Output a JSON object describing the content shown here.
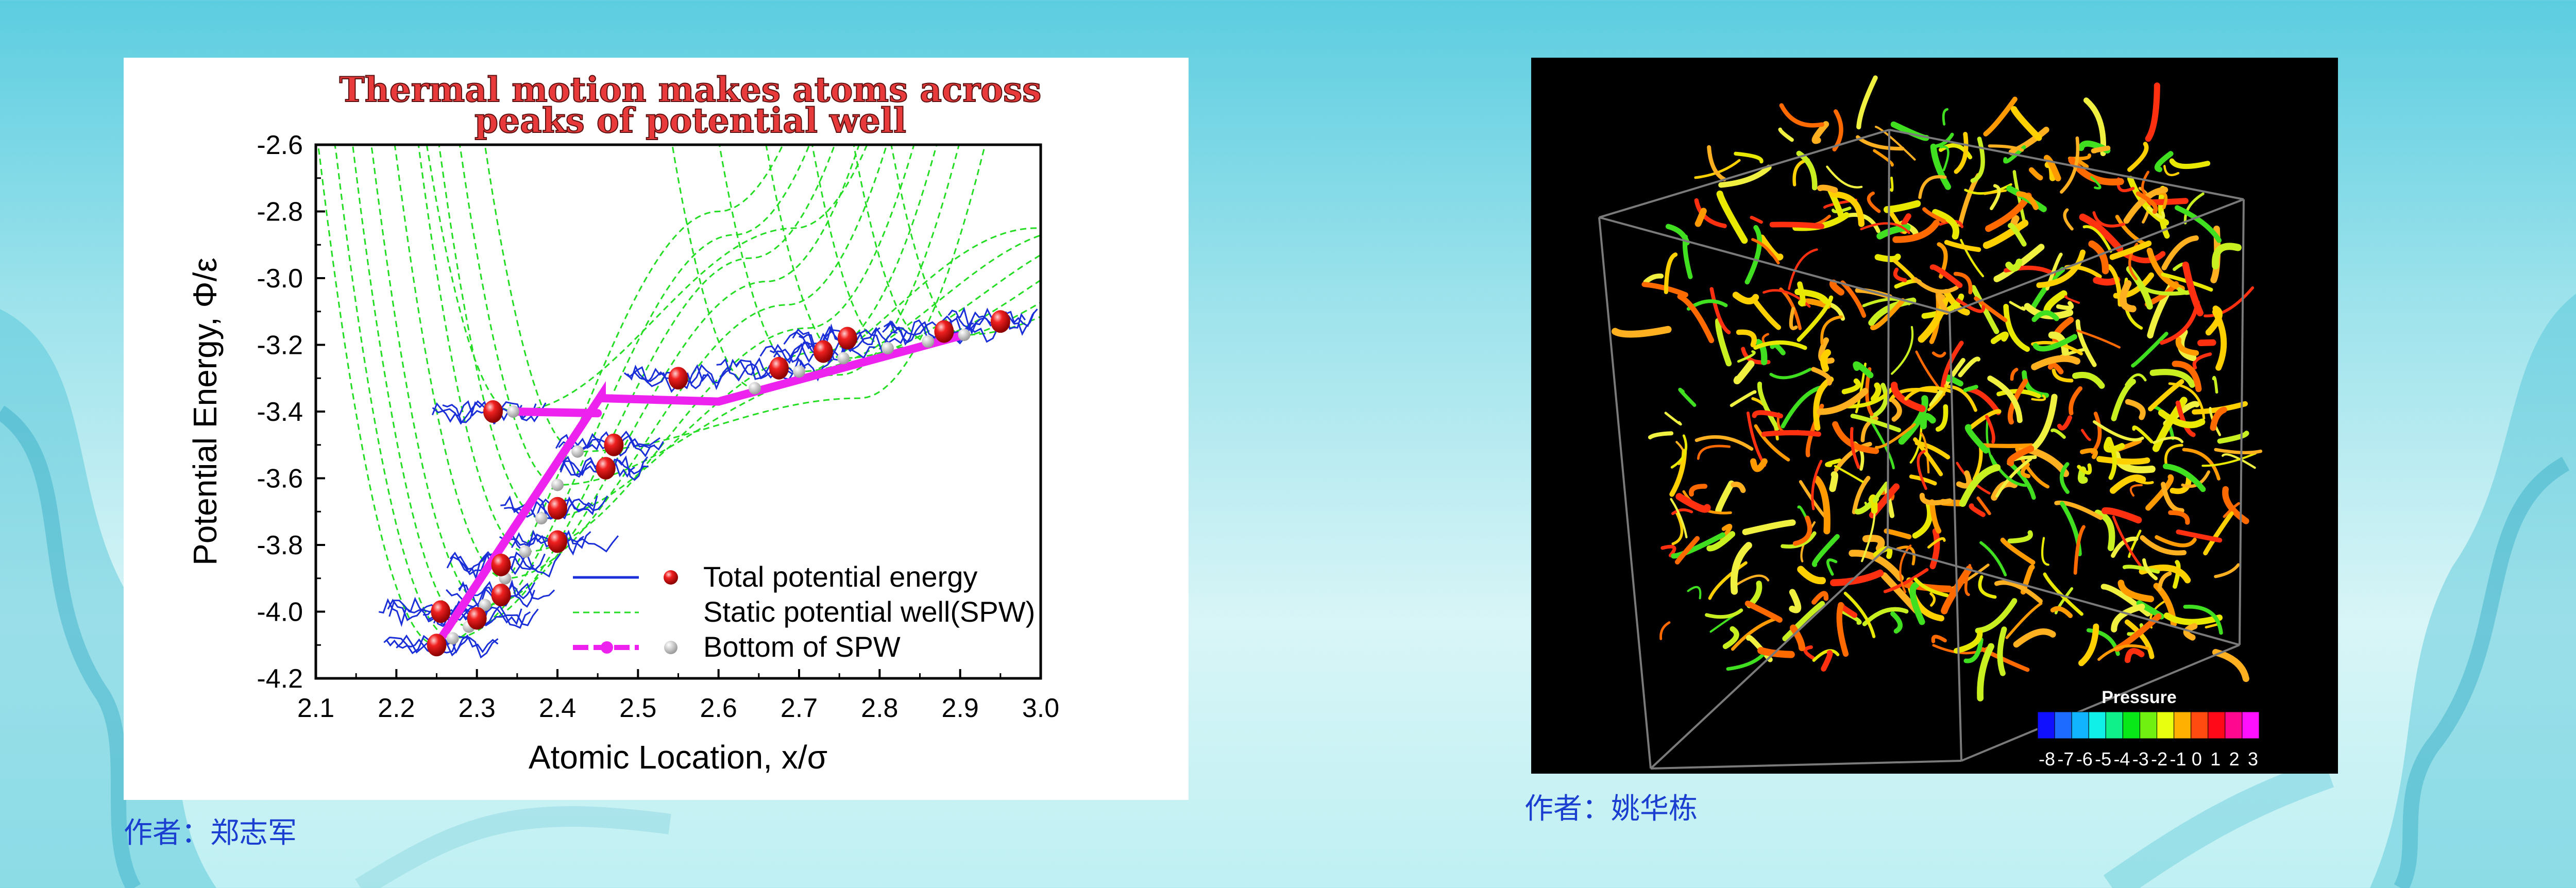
{
  "colors": {
    "background": "#8fdde8",
    "caption": "#1a3fd0",
    "total_pe": "#e01010",
    "spw": "#22dd22",
    "bottom_spw": "#ee22ee",
    "trajectory": "#1a2fd8",
    "bottom_marker": "#c8c8c8"
  },
  "left_caption": "作者：郑志军",
  "right_caption": "作者：姚华栋",
  "chart_data": [
    {
      "type": "line",
      "title_line1": "Thermal motion makes atoms across",
      "title_line2": "peaks of potential well",
      "xlabel": "Atomic Location, x/σ",
      "ylabel": "Potential Energy,  Φ/ε",
      "xlim": [
        2.1,
        3.0
      ],
      "ylim": [
        -4.2,
        -2.6
      ],
      "xticks": [
        "2.1",
        "2.2",
        "2.3",
        "2.4",
        "2.5",
        "2.6",
        "2.7",
        "2.8",
        "2.9",
        "3.0"
      ],
      "yticks": [
        "-2.6",
        "-2.8",
        "-3.0",
        "-3.2",
        "-3.4",
        "-3.6",
        "-3.8",
        "-4.0",
        "-4.2"
      ],
      "legend_position": "bottom-right",
      "legend": [
        "Total potential energy",
        "Static potential well(SPW)",
        "Bottom of SPW"
      ],
      "series": [
        {
          "name": "Total potential energy",
          "x": [
            2.25,
            2.255,
            2.3,
            2.33,
            2.33,
            2.4,
            2.4,
            2.46,
            2.47,
            2.32,
            2.55,
            2.675,
            2.73,
            2.76,
            2.88,
            2.95
          ],
          "y": [
            -4.1,
            -4.0,
            -4.02,
            -3.95,
            -3.86,
            -3.79,
            -3.69,
            -3.57,
            -3.5,
            -3.4,
            -3.3,
            -3.27,
            -3.22,
            -3.18,
            -3.16,
            -3.13
          ]
        },
        {
          "name": "Bottom of SPW",
          "x": [
            2.25,
            2.27,
            2.29,
            2.31,
            2.335,
            2.36,
            2.38,
            2.4,
            2.425,
            2.345,
            2.645,
            2.7,
            2.755,
            2.81,
            2.86,
            2.905
          ],
          "y": [
            -4.1,
            -4.08,
            -4.045,
            -3.98,
            -3.9,
            -3.82,
            -3.72,
            -3.62,
            -3.52,
            -3.4,
            -3.33,
            -3.28,
            -3.24,
            -3.21,
            -3.19,
            -3.17
          ]
        },
        {
          "name": "Bottom of SPW line",
          "x": [
            2.25,
            2.455,
            2.455,
            2.6,
            2.6,
            2.905
          ],
          "y": [
            -4.1,
            -3.35,
            -3.36,
            -3.37,
            -3.37,
            -3.17
          ]
        },
        {
          "name": "Bottom of SPW line upper",
          "x": [
            2.345,
            2.45
          ],
          "y": [
            -3.4,
            -3.405
          ]
        }
      ]
    },
    {
      "type": "heatmap",
      "colorbar_title": "Pressure",
      "colorbar_ticks": [
        "-8",
        "-7",
        "-6",
        "-5",
        "-4",
        "-3",
        "-2",
        "-1",
        "0",
        "1",
        "2",
        "3"
      ],
      "colorbar_colors": [
        "#1010ff",
        "#1e6cff",
        "#10b4ff",
        "#10f0e8",
        "#10f08a",
        "#08e818",
        "#70f010",
        "#e8ff10",
        "#ffb000",
        "#ff4a10",
        "#ff0818",
        "#ff0890",
        "#ff10ff"
      ]
    }
  ]
}
